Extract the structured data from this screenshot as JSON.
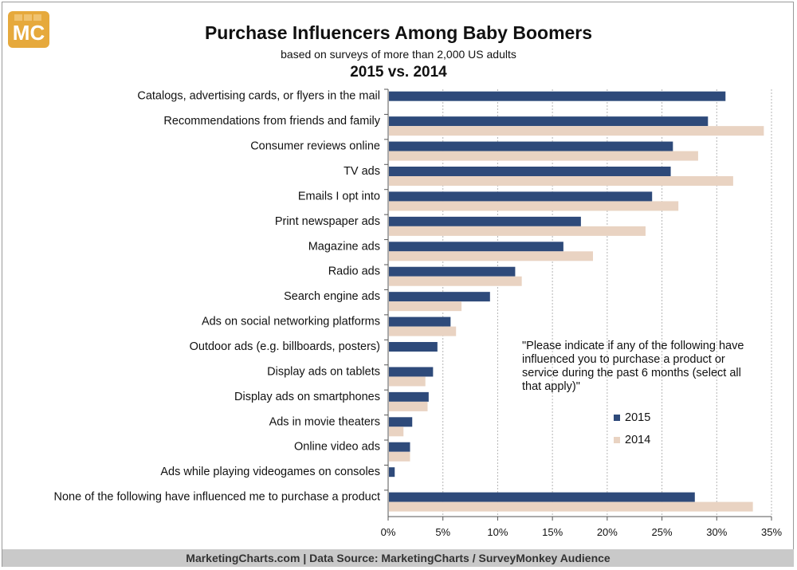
{
  "header": {
    "logo_text": "MC",
    "title": "Purchase Influencers Among Baby Boomers",
    "subtitle": "based on surveys of more than 2,000 US adults",
    "period": "2015 vs. 2014"
  },
  "note": "\"Please indicate if any of the following have influenced you to purchase a product or service during the past 6 months (select all that apply)\"",
  "footer": "MarketingCharts.com | Data Source: MarketingCharts / SurveyMonkey Audience",
  "colors": {
    "s2015": "#2e4a7a",
    "s2014": "#e9d3c2",
    "grid": "#b5b5b5"
  },
  "chart_data": {
    "type": "bar",
    "orientation": "horizontal",
    "categories": [
      "Catalogs, advertising cards, or flyers in the mail",
      "Recommendations from friends and family",
      "Consumer reviews online",
      "TV ads",
      "Emails I opt into",
      "Print newspaper ads",
      "Magazine ads",
      "Radio ads",
      "Search engine ads",
      "Ads on social networking platforms",
      "Outdoor ads (e.g. billboards, posters)",
      "Display ads on tablets",
      "Display ads on smartphones",
      "Ads in movie theaters",
      "Online video ads",
      "Ads while playing videogames on consoles",
      "None of the following have influenced me to purchase a product"
    ],
    "series": [
      {
        "name": "2015",
        "values": [
          30.8,
          29.2,
          26.0,
          25.8,
          24.1,
          17.6,
          16.0,
          11.6,
          9.3,
          5.7,
          4.5,
          4.1,
          3.7,
          2.2,
          2.0,
          0.6,
          28.0
        ]
      },
      {
        "name": "2014",
        "values": [
          null,
          34.3,
          28.3,
          31.5,
          26.5,
          23.5,
          18.7,
          12.2,
          6.7,
          6.2,
          null,
          3.4,
          3.6,
          1.4,
          2.0,
          null,
          33.3
        ]
      }
    ],
    "xlim": [
      0,
      35
    ],
    "xticks": [
      "0%",
      "5%",
      "10%",
      "15%",
      "20%",
      "25%",
      "30%",
      "35%"
    ],
    "grid": true,
    "legend_position": "bottom-right"
  }
}
